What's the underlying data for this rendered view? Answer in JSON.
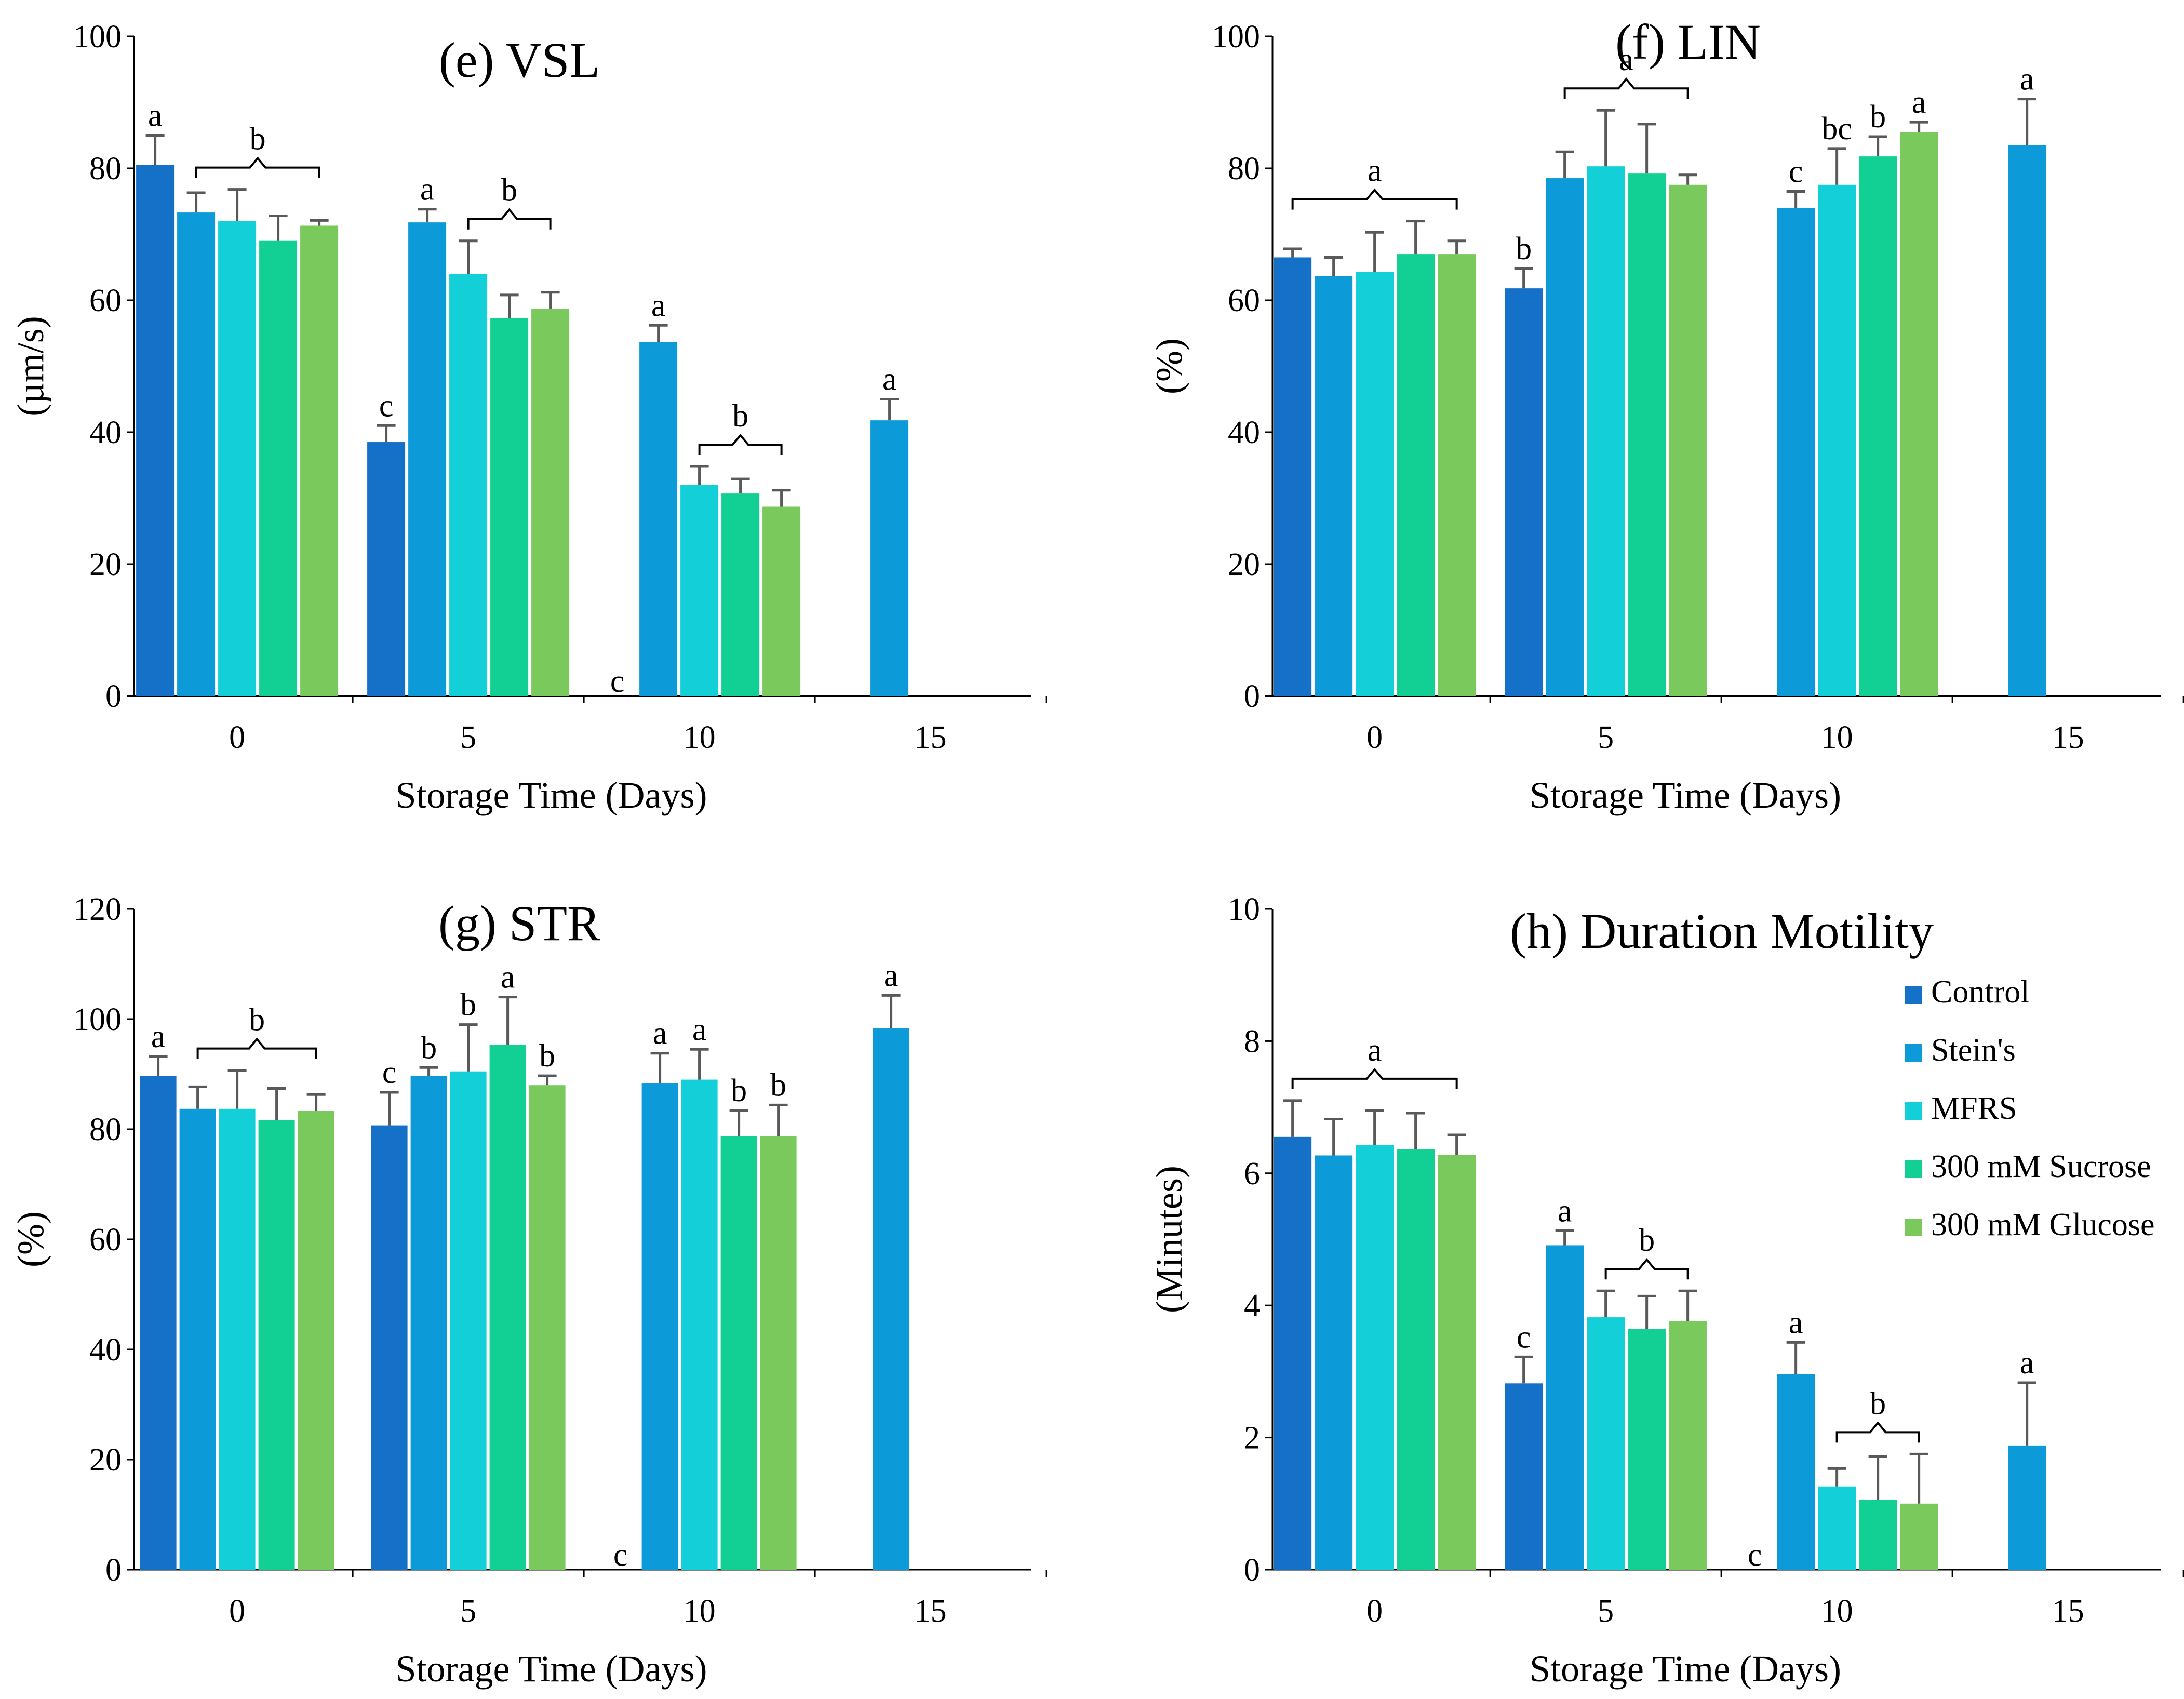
{
  "figure": {
    "legend": [
      "Control",
      "Stein's",
      "MFRS",
      "300 mM Sucrose",
      "300 mM Glucose"
    ],
    "colors": [
      "#1570c8",
      "#0c9bd8",
      "#12cfd8",
      "#12d093",
      "#7ac95c"
    ]
  },
  "chart_data": [
    {
      "type": "bar",
      "title": "(e) VSL",
      "xlabel": "Storage Time (Days)",
      "ylabel": "(µm/s)",
      "categories": [
        "0",
        "5",
        "10",
        "15"
      ],
      "ylim": [
        0,
        100
      ],
      "yticks": [
        "0",
        "20",
        "40",
        "60",
        "80",
        "100"
      ],
      "series": [
        {
          "name": "Control",
          "values": [
            80.5,
            38.5,
            0,
            null
          ],
          "errors": [
            4.5,
            2.5,
            0,
            null
          ]
        },
        {
          "name": "Stein's",
          "values": [
            73.3,
            71.8,
            53.7,
            41.8
          ],
          "errors": [
            3.0,
            2.0,
            2.5,
            3.2
          ]
        },
        {
          "name": "MFRS",
          "values": [
            72.0,
            64.0,
            32.0,
            null
          ],
          "errors": [
            4.8,
            5.0,
            2.8,
            null
          ]
        },
        {
          "name": "300 mM Sucrose",
          "values": [
            69.0,
            57.3,
            30.7,
            null
          ],
          "errors": [
            3.8,
            3.5,
            2.2,
            null
          ]
        },
        {
          "name": "300 mM Glucose",
          "values": [
            71.3,
            58.7,
            28.7,
            null
          ],
          "errors": [
            0.8,
            2.5,
            2.5,
            null
          ]
        }
      ],
      "annotations": [
        {
          "text": "a",
          "group": 0,
          "series": 0
        },
        {
          "text": "b",
          "group": 0,
          "series": [
            1,
            4
          ]
        },
        {
          "text": "c",
          "group": 1,
          "series": 0
        },
        {
          "text": "a",
          "group": 1,
          "series": 1
        },
        {
          "text": "b",
          "group": 1,
          "series": [
            2,
            4
          ]
        },
        {
          "text": "c",
          "group": 2,
          "series": 0
        },
        {
          "text": "a",
          "group": 2,
          "series": 1
        },
        {
          "text": "b",
          "group": 2,
          "series": [
            2,
            4
          ]
        },
        {
          "text": "a",
          "group": 3,
          "series": 1
        }
      ]
    },
    {
      "type": "bar",
      "title": "(f) LIN",
      "xlabel": "Storage Time (Days)",
      "ylabel": "(%)",
      "categories": [
        "0",
        "5",
        "10",
        "15"
      ],
      "ylim": [
        0,
        100
      ],
      "yticks": [
        "0",
        "20",
        "40",
        "60",
        "80",
        "100"
      ],
      "series": [
        {
          "name": "Control",
          "values": [
            66.5,
            61.8,
            null,
            null
          ],
          "errors": [
            1.3,
            3.0,
            null,
            null
          ]
        },
        {
          "name": "Stein's",
          "values": [
            63.7,
            78.5,
            74.0,
            83.5
          ],
          "errors": [
            2.8,
            4.0,
            2.5,
            7.0
          ]
        },
        {
          "name": "MFRS",
          "values": [
            64.3,
            80.3,
            77.5,
            null
          ],
          "errors": [
            6.0,
            8.5,
            5.5,
            null
          ]
        },
        {
          "name": "300 mM Sucrose",
          "values": [
            67.0,
            79.2,
            81.8,
            null
          ],
          "errors": [
            5.0,
            7.5,
            3.0,
            null
          ]
        },
        {
          "name": "300 mM Glucose",
          "values": [
            67.0,
            77.5,
            85.5,
            null
          ],
          "errors": [
            2.0,
            1.5,
            1.5,
            null
          ]
        }
      ],
      "annotations": [
        {
          "text": "a",
          "group": 0,
          "series": [
            0,
            4
          ]
        },
        {
          "text": "b",
          "group": 1,
          "series": 0
        },
        {
          "text": "a",
          "group": 1,
          "series": [
            1,
            4
          ]
        },
        {
          "text": "c",
          "group": 2,
          "series": 1
        },
        {
          "text": "bc",
          "group": 2,
          "series": 2
        },
        {
          "text": "b",
          "group": 2,
          "series": 3
        },
        {
          "text": "a",
          "group": 2,
          "series": 4
        },
        {
          "text": "a",
          "group": 3,
          "series": 1
        }
      ]
    },
    {
      "type": "bar",
      "title": "(g) STR",
      "xlabel": "Storage Time (Days)",
      "ylabel": "(%)",
      "categories": [
        "0",
        "5",
        "10",
        "15"
      ],
      "ylim": [
        0,
        120
      ],
      "yticks": [
        "0",
        "20",
        "40",
        "60",
        "80",
        "100",
        "120"
      ],
      "series": [
        {
          "name": "Control",
          "values": [
            89.7,
            80.7,
            0,
            null
          ],
          "errors": [
            3.5,
            6.0,
            0,
            null
          ]
        },
        {
          "name": "Stein's",
          "values": [
            83.7,
            89.7,
            88.3,
            98.3
          ],
          "errors": [
            4.0,
            1.5,
            5.5,
            6.0
          ]
        },
        {
          "name": "MFRS",
          "values": [
            83.7,
            90.5,
            89.0,
            null
          ],
          "errors": [
            7.0,
            8.5,
            5.5,
            null
          ]
        },
        {
          "name": "300 mM Sucrose",
          "values": [
            81.7,
            95.3,
            78.7,
            null
          ],
          "errors": [
            5.7,
            8.7,
            4.7,
            null
          ]
        },
        {
          "name": "300 mM Glucose",
          "values": [
            83.3,
            88.0,
            78.7,
            null
          ],
          "errors": [
            3.0,
            1.7,
            5.7,
            null
          ]
        }
      ],
      "annotations": [
        {
          "text": "a",
          "group": 0,
          "series": 0
        },
        {
          "text": "b",
          "group": 0,
          "series": [
            1,
            4
          ]
        },
        {
          "text": "c",
          "group": 1,
          "series": 0
        },
        {
          "text": "b",
          "group": 1,
          "series": 1
        },
        {
          "text": "b",
          "group": 1,
          "series": 2
        },
        {
          "text": "a",
          "group": 1,
          "series": 3
        },
        {
          "text": "b",
          "group": 1,
          "series": 4
        },
        {
          "text": "c",
          "group": 2,
          "series": 0
        },
        {
          "text": "a",
          "group": 2,
          "series": 1
        },
        {
          "text": "a",
          "group": 2,
          "series": 2
        },
        {
          "text": "b",
          "group": 2,
          "series": 3
        },
        {
          "text": "b",
          "group": 2,
          "series": 4
        },
        {
          "text": "a",
          "group": 3,
          "series": 1
        }
      ]
    },
    {
      "type": "bar",
      "title": "(h) Duration Motility",
      "xlabel": "Storage Time (Days)",
      "ylabel": "(Minutes)",
      "categories": [
        "0",
        "5",
        "10",
        "15"
      ],
      "ylim": [
        0,
        10
      ],
      "yticks": [
        "0",
        "2",
        "4",
        "6",
        "8",
        "10"
      ],
      "legend": "right",
      "series": [
        {
          "name": "Control",
          "values": [
            6.55,
            2.82,
            0,
            null
          ],
          "errors": [
            0.55,
            0.4,
            0,
            null
          ]
        },
        {
          "name": "Stein's",
          "values": [
            6.27,
            4.91,
            2.96,
            1.88
          ],
          "errors": [
            0.55,
            0.22,
            0.48,
            0.95
          ]
        },
        {
          "name": "MFRS",
          "values": [
            6.43,
            3.82,
            1.26,
            null
          ],
          "errors": [
            0.52,
            0.4,
            0.27,
            null
          ]
        },
        {
          "name": "300 mM Sucrose",
          "values": [
            6.36,
            3.64,
            1.06,
            null
          ],
          "errors": [
            0.55,
            0.5,
            0.65,
            null
          ]
        },
        {
          "name": "300 mM Glucose",
          "values": [
            6.28,
            3.76,
            1.0,
            null
          ],
          "errors": [
            0.3,
            0.46,
            0.75,
            null
          ]
        }
      ],
      "annotations": [
        {
          "text": "a",
          "group": 0,
          "series": [
            0,
            4
          ]
        },
        {
          "text": "c",
          "group": 1,
          "series": 0
        },
        {
          "text": "a",
          "group": 1,
          "series": 1
        },
        {
          "text": "b",
          "group": 1,
          "series": [
            2,
            4
          ]
        },
        {
          "text": "c",
          "group": 2,
          "series": 0
        },
        {
          "text": "a",
          "group": 2,
          "series": 1
        },
        {
          "text": "b",
          "group": 2,
          "series": [
            2,
            4
          ]
        },
        {
          "text": "a",
          "group": 3,
          "series": 1
        }
      ]
    }
  ]
}
